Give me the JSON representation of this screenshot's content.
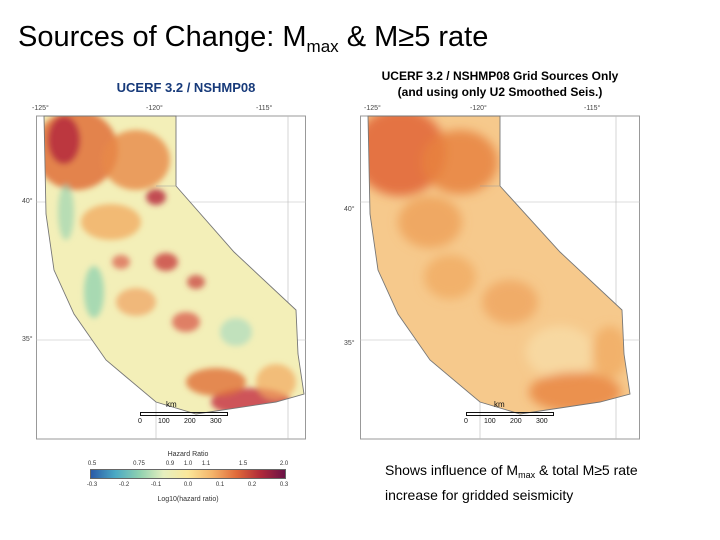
{
  "slide": {
    "title_prefix": "Sources of Change: M",
    "title_sub": "max",
    "title_suffix": " & M≥5 rate"
  },
  "left_map": {
    "caption": "UCERF 3.2 / NSHMP08",
    "lon_ticks": [
      "-125°",
      "-120°",
      "-115°"
    ],
    "lat_ticks": [
      "40°",
      "35°"
    ],
    "scale_label": "km",
    "scale_values": [
      "0",
      "100",
      "200",
      "300"
    ]
  },
  "right_map": {
    "caption_line1": "UCERF 3.2 / NSHMP08 Grid Sources Only",
    "caption_line2": "(and using only U2 Smoothed Seis.)",
    "lon_ticks": [
      "-125°",
      "-120°",
      "-115°"
    ],
    "lat_ticks": [
      "40°",
      "35°"
    ],
    "scale_label": "km",
    "scale_values": [
      "0",
      "100",
      "200",
      "300"
    ]
  },
  "legend": {
    "title": "Hazard Ratio",
    "top_ticks": [
      "0.5",
      "0.75",
      "0.9",
      "1.0",
      "1.1",
      "1.5",
      "2.0"
    ],
    "bottom_ticks": [
      "-0.3",
      "-0.2",
      "-0.1",
      "0.0",
      "0.1",
      "0.2",
      "0.3"
    ],
    "axis_label": "Log10(hazard ratio)",
    "colors": [
      "#2a5aa8",
      "#4aa9c4",
      "#8fd1b0",
      "#e6efbf",
      "#fbe79a",
      "#f4b46a",
      "#e06a3a",
      "#b02a3a",
      "#6a1246"
    ]
  },
  "note": {
    "text_prefix": "Shows influence of M",
    "text_sub": "max",
    "text_suffix": " & total M≥5 rate increase for gridded seismicity"
  }
}
